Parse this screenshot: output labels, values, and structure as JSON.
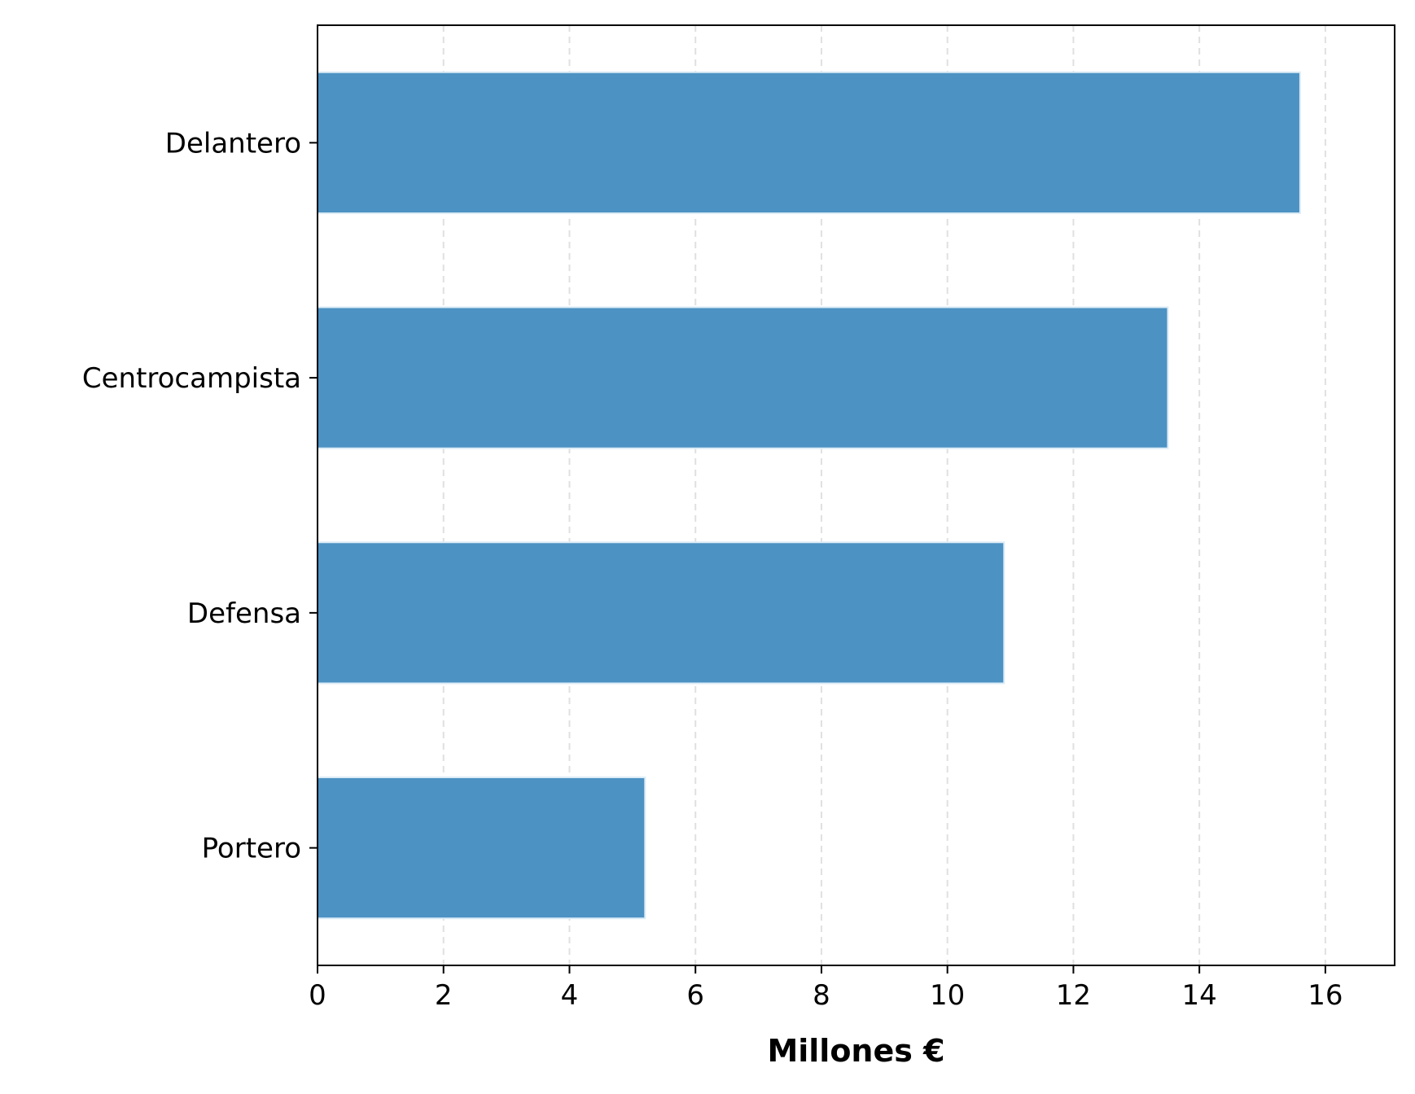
{
  "chart_data": {
    "type": "bar",
    "orientation": "horizontal",
    "categories": [
      "Portero",
      "Defensa",
      "Centrocampista",
      "Delantero"
    ],
    "values": [
      5.2,
      10.9,
      13.5,
      15.6
    ],
    "title": "",
    "xlabel": "Millones €",
    "ylabel": "",
    "xlim": [
      0,
      17.1
    ],
    "xticks": [
      0,
      2,
      4,
      6,
      8,
      10,
      12,
      14,
      16
    ],
    "grid": "x, dashed",
    "bar_color": "#4c92c3",
    "bar_edge_color": "#dcecf6"
  }
}
